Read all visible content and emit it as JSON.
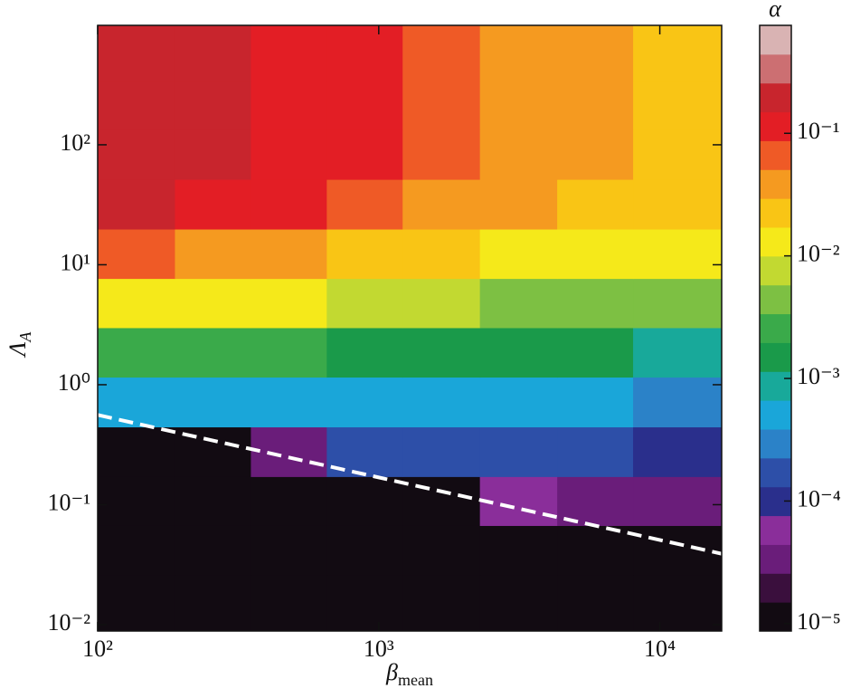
{
  "chart_data": {
    "type": "contour",
    "xlabel": {
      "symbol": "β",
      "subscript": "mean"
    },
    "ylabel": {
      "symbol": "Λ",
      "subscript": "A"
    },
    "colorbar_label": "α",
    "xscale": "log",
    "yscale": "log",
    "cscale": "log",
    "xlim": [
      100,
      16600
    ],
    "ylim": [
      0.00885,
      990
    ],
    "clim": [
      8.7e-06,
      0.76
    ],
    "xticks": [
      {
        "value": 100,
        "label": "10²"
      },
      {
        "value": 1000,
        "label": "10³"
      },
      {
        "value": 10000,
        "label": "10⁴"
      }
    ],
    "yticks": [
      {
        "value": 0.01,
        "label": "10⁻²"
      },
      {
        "value": 0.1,
        "label": "10⁻¹"
      },
      {
        "value": 1,
        "label": "10⁰"
      },
      {
        "value": 10,
        "label": "10¹"
      },
      {
        "value": 100,
        "label": "10²"
      }
    ],
    "cticks": [
      {
        "value": 1e-05,
        "label": "10⁻⁵"
      },
      {
        "value": 0.0001,
        "label": "10⁻⁴"
      },
      {
        "value": 0.001,
        "label": "10⁻³"
      },
      {
        "value": 0.01,
        "label": "10⁻²"
      },
      {
        "value": 0.1,
        "label": "10⁻¹"
      }
    ],
    "colormap": [
      "#120b12",
      "#3a0f3d",
      "#6a1d7a",
      "#8a2e9a",
      "#2a2f8c",
      "#2d4fa8",
      "#2b82c8",
      "#1aa6d9",
      "#18a99a",
      "#1a9a4a",
      "#3aaa4a",
      "#7dc043",
      "#c2d931",
      "#f5e91a",
      "#f9c515",
      "#f59a20",
      "#ef5a26",
      "#e31e25",
      "#c8252d",
      "#cc6f72",
      "#d9b3b3"
    ],
    "x": [
      138,
      257,
      479,
      891,
      1660,
      3160,
      5890,
      10960
    ],
    "y": [
      0.016,
      0.042,
      0.107,
      0.275,
      0.72,
      1.86,
      4.8,
      12.3,
      32,
      83,
      214,
      550
    ],
    "z": [
      [
        1e-05,
        1e-05,
        1e-05,
        1e-05,
        1e-05,
        1e-05,
        1e-05,
        1e-05
      ],
      [
        1e-05,
        1e-05,
        1e-05,
        1e-05,
        1e-05,
        1e-05,
        1e-05,
        1e-05
      ],
      [
        1e-05,
        1e-05,
        1e-05,
        1e-05,
        1e-05,
        5e-05,
        4e-05,
        3e-05
      ],
      [
        1e-05,
        1e-05,
        3e-05,
        0.00015,
        0.0002,
        0.0002,
        0.00015,
        0.0001
      ],
      [
        0.0005,
        0.0006,
        0.0005,
        0.0005,
        0.0004,
        0.0004,
        0.0004,
        0.0003
      ],
      [
        0.003,
        0.0025,
        0.002,
        0.0018,
        0.0015,
        0.0013,
        0.0012,
        0.0011
      ],
      [
        0.015,
        0.012,
        0.01,
        0.008,
        0.006,
        0.005,
        0.004,
        0.0035
      ],
      [
        0.07,
        0.04,
        0.03,
        0.025,
        0.02,
        0.015,
        0.012,
        0.01
      ],
      [
        0.2,
        0.13,
        0.1,
        0.08,
        0.05,
        0.035,
        0.025,
        0.02
      ],
      [
        0.25,
        0.15,
        0.12,
        0.09,
        0.06,
        0.04,
        0.03,
        0.02
      ],
      [
        0.25,
        0.15,
        0.12,
        0.09,
        0.06,
        0.04,
        0.03,
        0.02
      ],
      [
        0.25,
        0.15,
        0.12,
        0.09,
        0.06,
        0.04,
        0.03,
        0.02
      ]
    ],
    "boundary": {
      "color": "#ffffff",
      "style": "dashed",
      "x": [
        100,
        16600
      ],
      "y": [
        0.56,
        0.039
      ]
    }
  }
}
